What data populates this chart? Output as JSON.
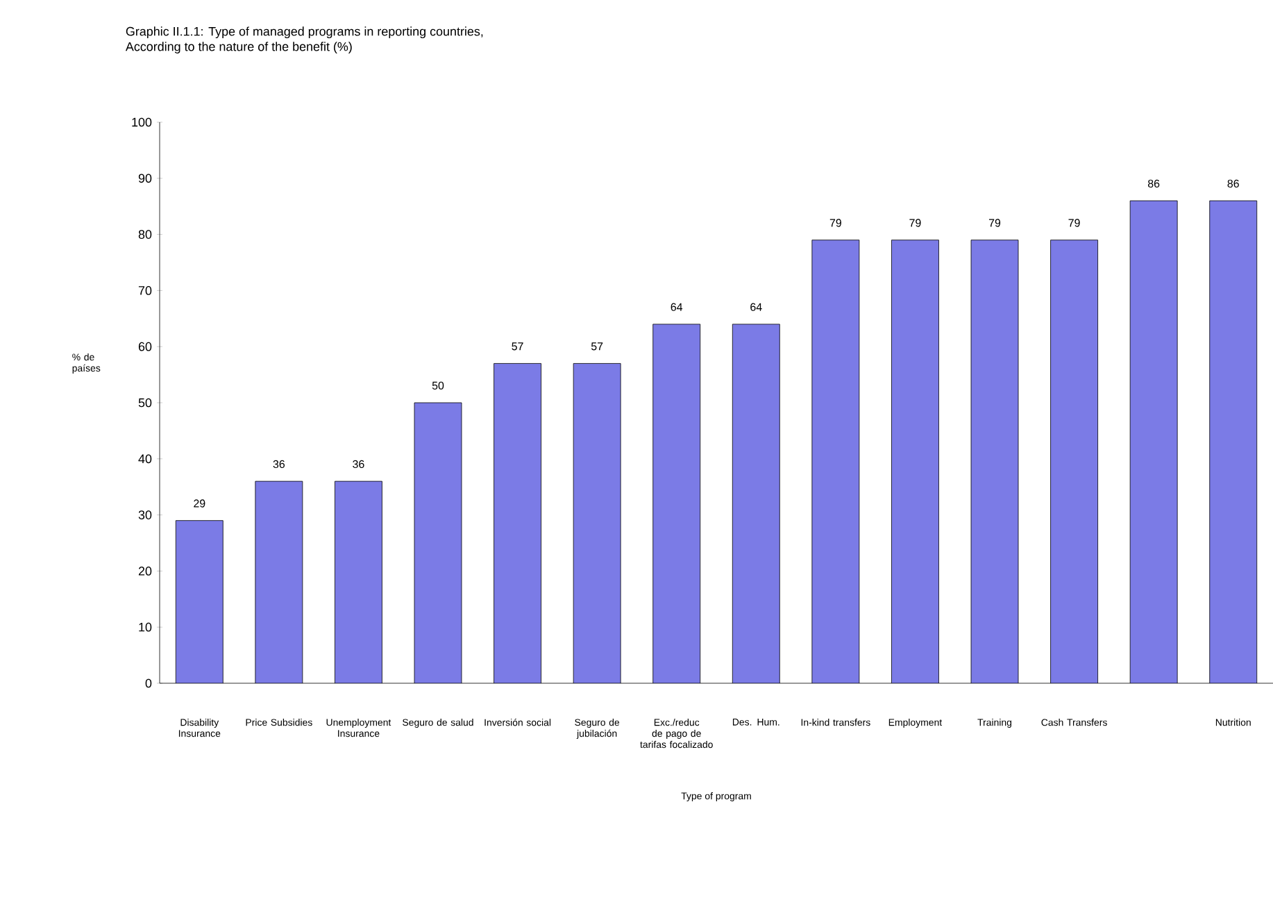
{
  "chart_data": {
    "type": "bar",
    "title": "Graphic II.1.1: Type of managed programs in reporting countries,",
    "subtitle": "According to the nature of the benefit (%)",
    "xlabel": "Type of  program",
    "ylabel": "% de países",
    "categories": [
      "Disability Insurance",
      "Price Subsidies",
      "Unemployment Insurance",
      "Seguro de salud",
      "Inversión social",
      "Seguro de jubilación",
      "Exc./reduc de pago de tarifas focalizado",
      "Des. Hum.",
      "In-kind transfers",
      "Employment",
      "Training",
      "Cash Transfers",
      null,
      "Nutrition"
    ],
    "values": [
      29,
      36,
      36,
      50,
      57,
      57,
      64,
      64,
      79,
      79,
      79,
      79,
      86,
      86
    ],
    "color": "#7b7be6",
    "ylim": [
      0,
      100
    ],
    "yticks": [
      0,
      10,
      20,
      30,
      40,
      50,
      60,
      70,
      80,
      90,
      100
    ],
    "data_labels": true
  }
}
